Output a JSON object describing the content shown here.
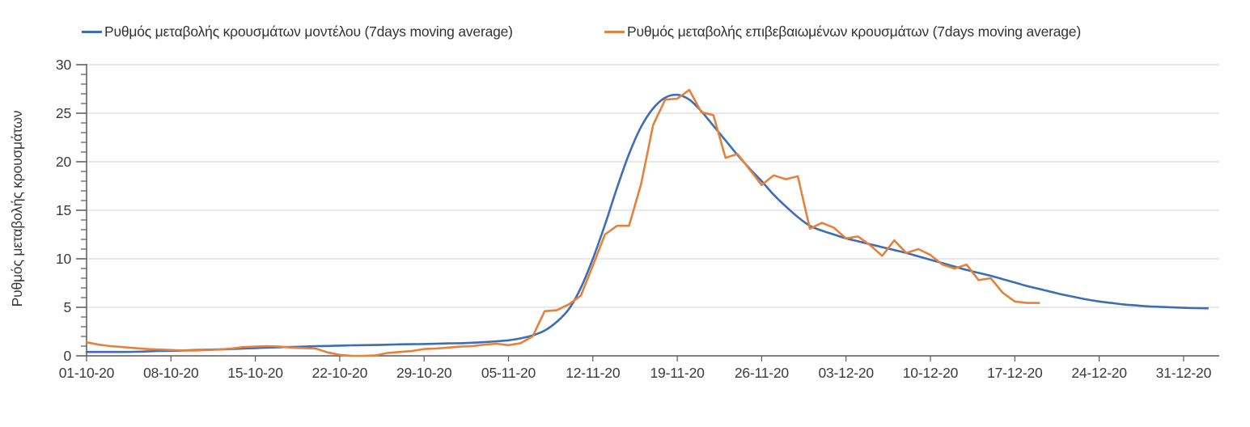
{
  "chart_data": {
    "type": "line",
    "title": "",
    "xlabel": "",
    "ylabel": "Ρυθμός μεταβολής κρουσμάτων",
    "ylim": [
      0,
      30
    ],
    "y_major_ticks": [
      0,
      5,
      10,
      15,
      20,
      25,
      30
    ],
    "y_minor_tick_step": 1,
    "x_ticklabels": [
      "01-10-20",
      "08-10-20",
      "15-10-20",
      "22-10-20",
      "29-10-20",
      "05-11-20",
      "12-11-20",
      "19-11-20",
      "26-11-20",
      "03-12-20",
      "10-12-20",
      "17-12-20",
      "24-12-20",
      "31-12-20"
    ],
    "x_tick_spacing_days": 7,
    "x_range_days": [
      0,
      93
    ],
    "grid": "horizontal-only",
    "legend_position": "top-left",
    "colors": {
      "grid": "#dcdcdc",
      "axis": "#595959",
      "tick_text": "#3a3a3a"
    },
    "series": [
      {
        "name": "Ρυθμός μεταβολής κρουσμάτων μοντέλου (7days moving average)",
        "color": "#3d6db5",
        "style": "smooth",
        "start_day": 0,
        "step_days": 1,
        "values": [
          0.4,
          0.4,
          0.4,
          0.4,
          0.42,
          0.45,
          0.5,
          0.52,
          0.55,
          0.6,
          0.63,
          0.67,
          0.7,
          0.75,
          0.8,
          0.85,
          0.88,
          0.92,
          0.95,
          1.0,
          1.02,
          1.05,
          1.08,
          1.1,
          1.12,
          1.15,
          1.18,
          1.2,
          1.22,
          1.25,
          1.28,
          1.3,
          1.35,
          1.42,
          1.5,
          1.6,
          1.8,
          2.1,
          2.6,
          3.5,
          4.8,
          7.0,
          10.0,
          13.5,
          17.3,
          20.8,
          23.6,
          25.5,
          26.6,
          26.9,
          26.4,
          25.2,
          23.7,
          22.2,
          20.7,
          19.3,
          18.0,
          16.6,
          15.4,
          14.3,
          13.4,
          12.9,
          12.5,
          12.1,
          11.8,
          11.5,
          11.2,
          10.9,
          10.6,
          10.25,
          9.9,
          9.55,
          9.2,
          8.85,
          8.55,
          8.25,
          7.9,
          7.55,
          7.2,
          6.9,
          6.6,
          6.3,
          6.05,
          5.8,
          5.6,
          5.45,
          5.3,
          5.2,
          5.1,
          5.05,
          5.0,
          4.95,
          4.92,
          4.9
        ]
      },
      {
        "name": "Ρυθμός μεταβολής επιβεβαιωμένων κρουσμάτων (7days moving average)",
        "color": "#e5813a",
        "style": "jagged",
        "start_day": 0,
        "step_days": 1,
        "values": [
          1.4,
          1.15,
          1.0,
          0.9,
          0.8,
          0.7,
          0.65,
          0.6,
          0.55,
          0.55,
          0.6,
          0.65,
          0.75,
          0.9,
          0.95,
          1.0,
          0.95,
          0.85,
          0.8,
          0.75,
          0.35,
          0.1,
          0.0,
          0.0,
          0.05,
          0.3,
          0.4,
          0.5,
          0.7,
          0.75,
          0.85,
          0.95,
          1.0,
          1.15,
          1.25,
          1.1,
          1.3,
          2.0,
          4.6,
          4.7,
          5.3,
          6.2,
          9.3,
          12.5,
          13.4,
          13.4,
          17.7,
          23.8,
          26.4,
          26.5,
          27.4,
          25.1,
          24.8,
          20.4,
          20.8,
          19.2,
          17.6,
          18.6,
          18.2,
          18.5,
          13.1,
          13.7,
          13.2,
          12.1,
          12.3,
          11.4,
          10.3,
          11.9,
          10.6,
          11.0,
          10.4,
          9.4,
          9.0,
          9.4,
          7.8,
          8.0,
          6.5,
          5.6,
          5.45,
          5.45
        ]
      }
    ]
  }
}
